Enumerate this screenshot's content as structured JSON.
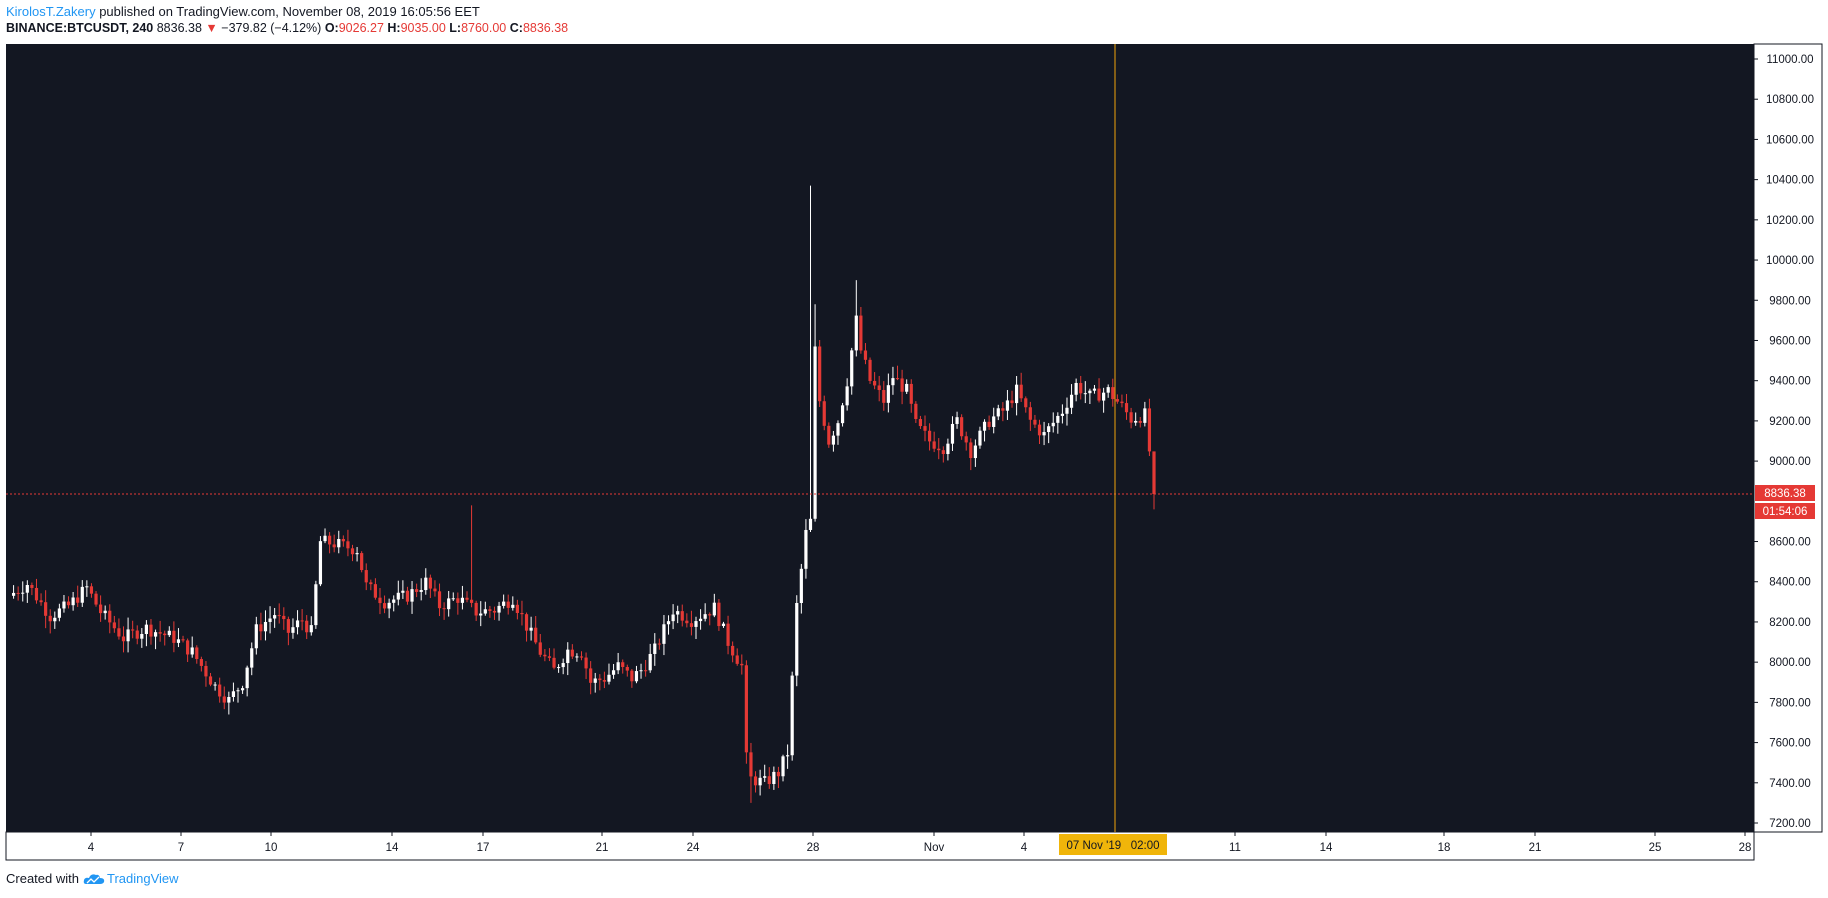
{
  "header": {
    "author": "KirolosT.Zakery",
    "published_text": "published on TradingView.com, November 08, 2019 16:05:56 EET",
    "symbol": "BINANCE:BTCUSDT, 240",
    "last_price": "8836.38",
    "change_arrow": "▼",
    "change": "−379.82 (−4.12%)",
    "open_label": "O:",
    "open": "9026.27",
    "high_label": "H:",
    "high": "9035.00",
    "low_label": "L:",
    "low": "8760.00",
    "close_label": "C:",
    "close": "8836.38"
  },
  "footer": {
    "created_with": "Created with",
    "brand": "TradingView",
    "brand_icon": "tradingview-cloud-icon"
  },
  "colors": {
    "background": "#131722",
    "up": "#ffffff",
    "down": "#e53935",
    "crosshair": "#f0a30a",
    "price_line": "#e53935",
    "axis_text": "#131722"
  },
  "chart_data": {
    "type": "candlestick",
    "x_tick_labels": [
      "4",
      "7",
      "10",
      "14",
      "17",
      "21",
      "24",
      "28",
      "Nov",
      "4",
      "11",
      "14",
      "18",
      "21",
      "25",
      "28"
    ],
    "y_tick_labels": [
      "11000.00",
      "10800.00",
      "10600.00",
      "10400.00",
      "10200.00",
      "10000.00",
      "9800.00",
      "9600.00",
      "9400.00",
      "9200.00",
      "9000.00",
      "8600.00",
      "8400.00",
      "8200.00",
      "8000.00",
      "7800.00",
      "7600.00",
      "7400.00",
      "7200.00"
    ],
    "ylim": [
      7150,
      11080
    ],
    "last_price_label": "8836.38",
    "countdown_label": "01:54:06",
    "crosshair_label": "07 Nov '19   02:00",
    "price_line": 8836.38,
    "price_path": [
      [
        0,
        8330
      ],
      [
        4,
        8390
      ],
      [
        9,
        8230
      ],
      [
        13,
        8280
      ],
      [
        17,
        8370
      ],
      [
        20,
        8250
      ],
      [
        25,
        8120
      ],
      [
        30,
        8170
      ],
      [
        36,
        8120
      ],
      [
        40,
        8050
      ],
      [
        45,
        7880
      ],
      [
        48,
        7810
      ],
      [
        51,
        7900
      ],
      [
        54,
        8160
      ],
      [
        58,
        8240
      ],
      [
        61,
        8150
      ],
      [
        64,
        8210
      ],
      [
        66,
        8150
      ],
      [
        68,
        8600
      ],
      [
        71,
        8590
      ],
      [
        76,
        8560
      ],
      [
        78,
        8380
      ],
      [
        82,
        8300
      ],
      [
        87,
        8330
      ],
      [
        91,
        8400
      ],
      [
        94,
        8280
      ],
      [
        98,
        8320
      ],
      [
        102,
        8250
      ],
      [
        106,
        8260
      ],
      [
        110,
        8320
      ],
      [
        113,
        8180
      ],
      [
        116,
        8050
      ],
      [
        119,
        7960
      ],
      [
        122,
        8060
      ],
      [
        125,
        8050
      ],
      [
        127,
        7900
      ],
      [
        130,
        7920
      ],
      [
        133,
        7980
      ],
      [
        136,
        7920
      ],
      [
        138,
        7960
      ],
      [
        141,
        8060
      ],
      [
        145,
        8260
      ],
      [
        149,
        8210
      ],
      [
        154,
        8270
      ],
      [
        157,
        8100
      ],
      [
        160,
        7980
      ],
      [
        161,
        7520
      ],
      [
        162,
        7420
      ],
      [
        165,
        7400
      ],
      [
        168,
        7450
      ],
      [
        170,
        7550
      ],
      [
        172,
        8280
      ],
      [
        174,
        8640
      ],
      [
        175,
        8700
      ],
      [
        176,
        9550
      ],
      [
        177,
        9300
      ],
      [
        179,
        9100
      ],
      [
        181,
        9200
      ],
      [
        183,
        9400
      ],
      [
        185,
        9700
      ],
      [
        186,
        9550
      ],
      [
        188,
        9400
      ],
      [
        191,
        9300
      ],
      [
        193,
        9420
      ],
      [
        196,
        9350
      ],
      [
        198,
        9180
      ],
      [
        201,
        9100
      ],
      [
        204,
        9070
      ],
      [
        207,
        9200
      ],
      [
        210,
        9050
      ],
      [
        214,
        9200
      ],
      [
        217,
        9250
      ],
      [
        220,
        9350
      ],
      [
        223,
        9200
      ],
      [
        226,
        9130
      ],
      [
        230,
        9250
      ],
      [
        233,
        9380
      ],
      [
        236,
        9320
      ],
      [
        240,
        9350
      ],
      [
        243,
        9270
      ],
      [
        245,
        9210
      ],
      [
        248,
        9230
      ],
      [
        249,
        9050
      ],
      [
        250,
        8836
      ]
    ]
  }
}
